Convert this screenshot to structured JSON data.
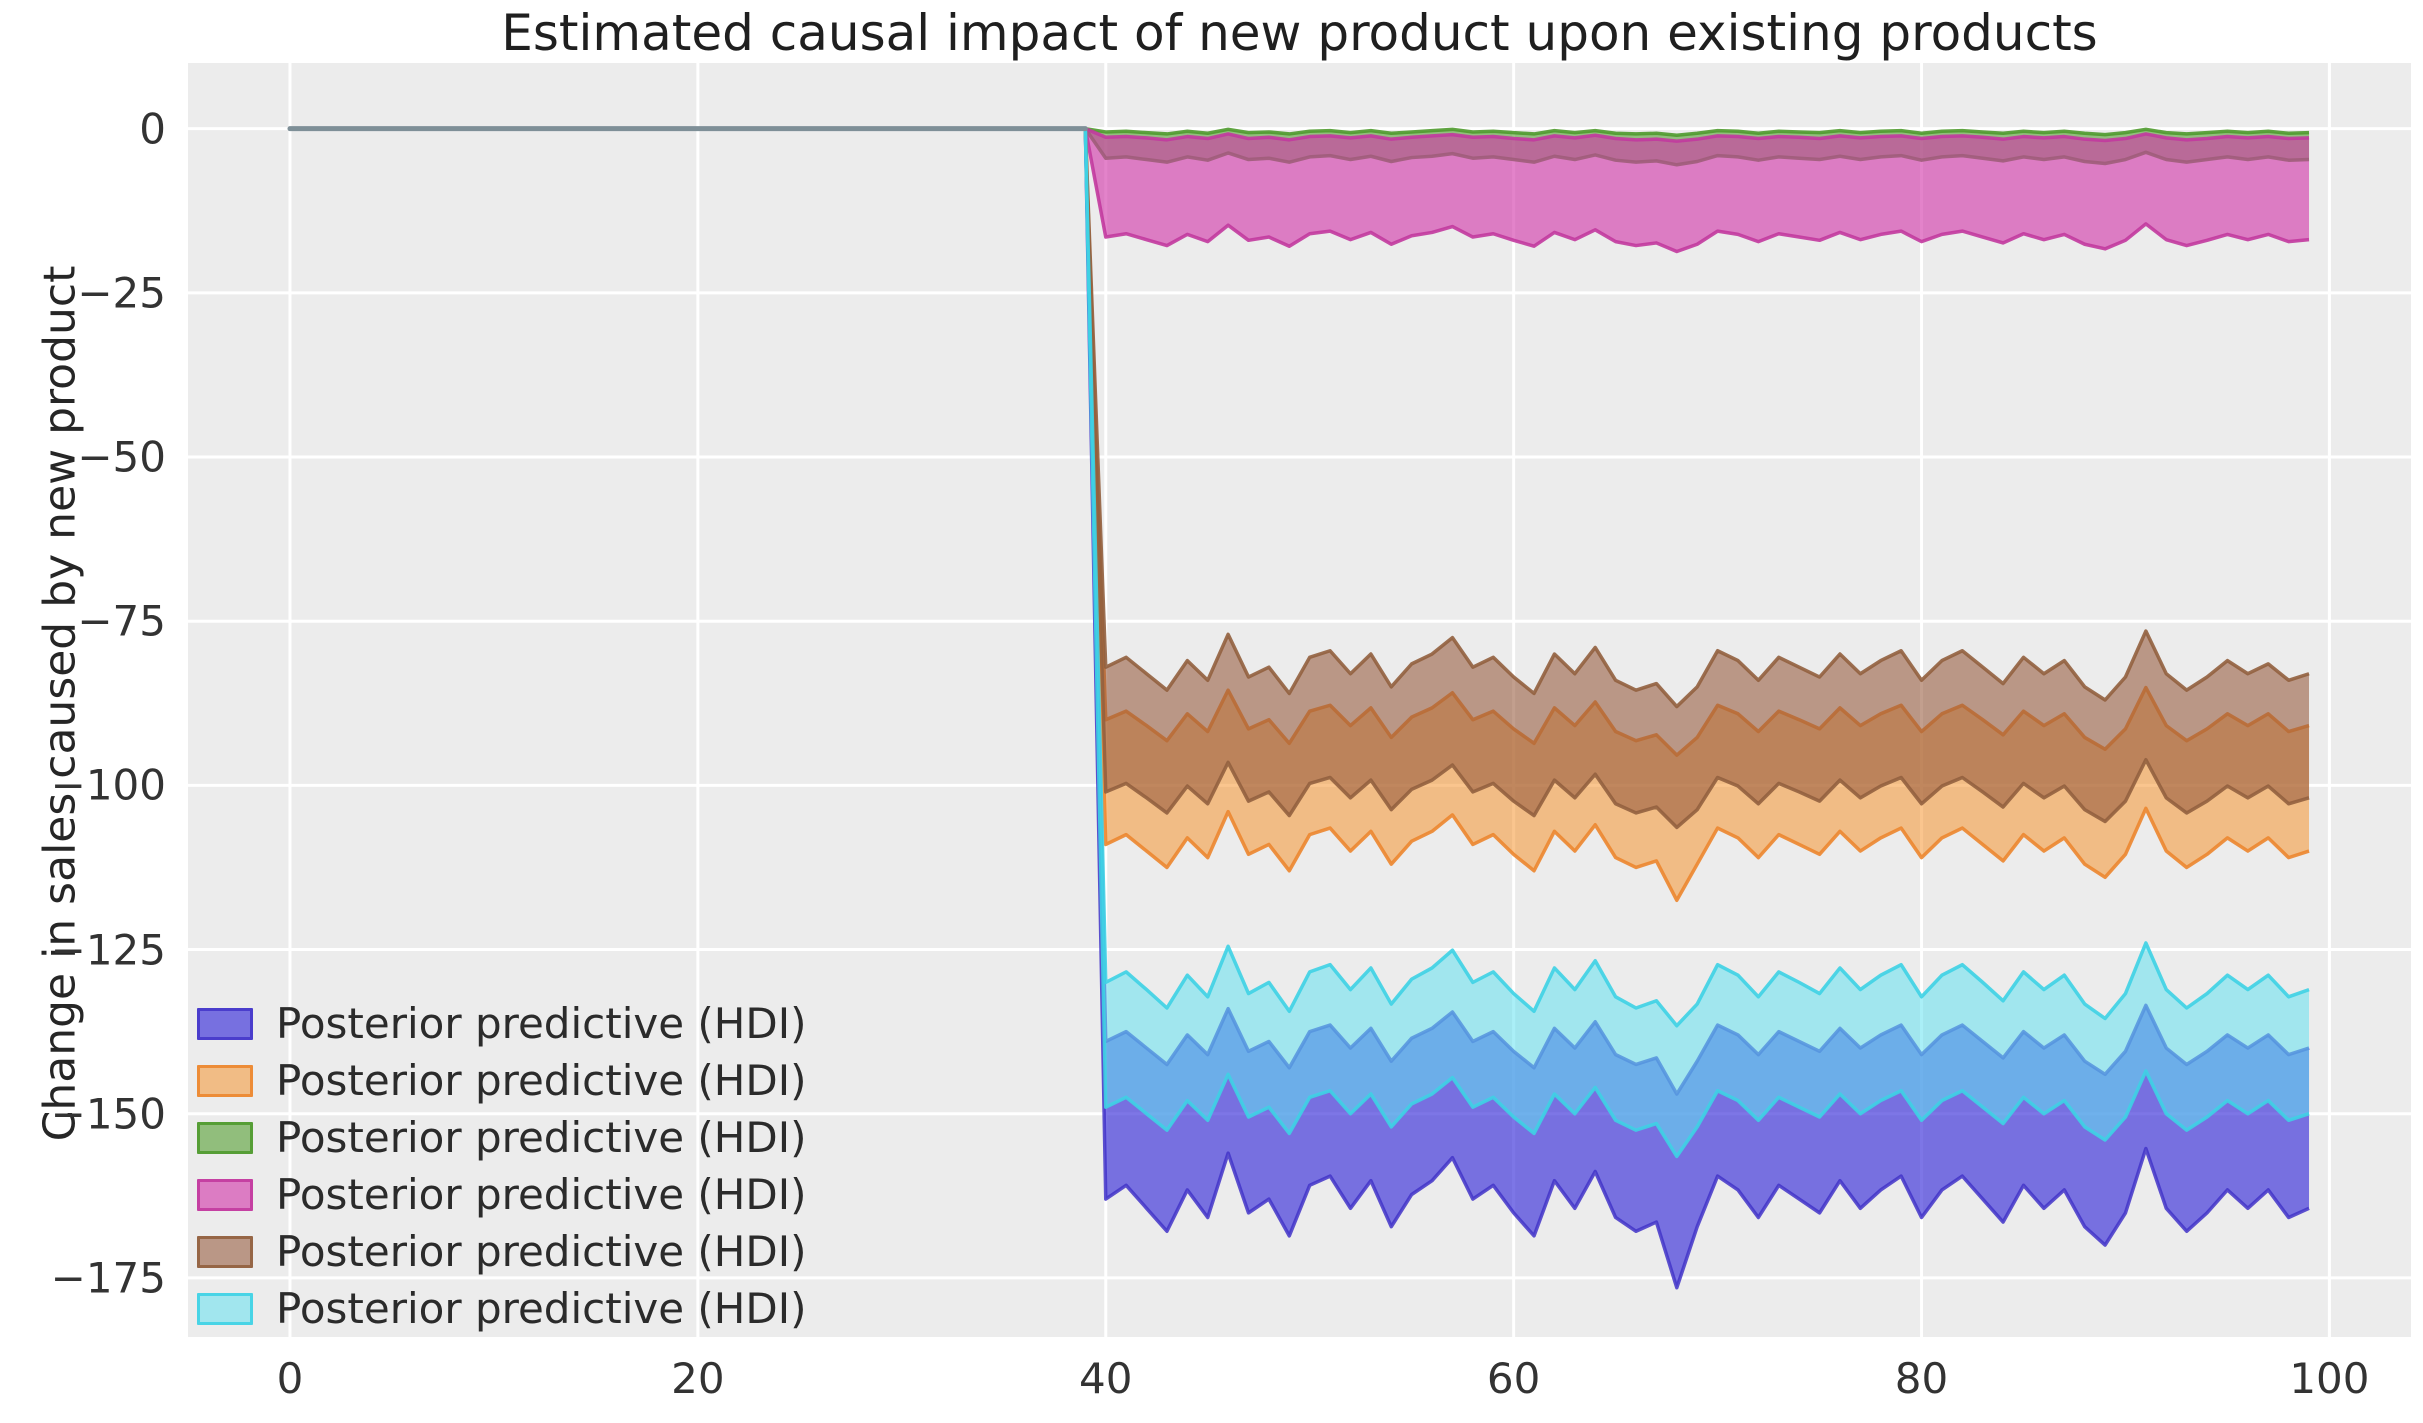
{
  "chart_data": {
    "type": "area",
    "title": "Estimated causal impact of new product upon existing products",
    "xlabel": "",
    "ylabel": "Change in sales caused by new product",
    "xlim": [
      -5,
      104
    ],
    "ylim": [
      -184,
      10
    ],
    "xticks": [
      0,
      20,
      40,
      60,
      80,
      100
    ],
    "xtick_labels": [
      "0",
      "20",
      "40",
      "60",
      "80",
      "100"
    ],
    "yticks": [
      0,
      -25,
      -50,
      -75,
      -100,
      -125,
      -150,
      -175
    ],
    "ytick_labels": [
      "0",
      "−25",
      "−50",
      "−75",
      "−100",
      "−125",
      "−150",
      "−175"
    ],
    "grid": true,
    "plot_bg_color": "#ececec",
    "grid_color": "#ffffff",
    "legend_position": "lower left",
    "pre_period_line": {
      "x_start": 0,
      "x_end": 39,
      "value": 0,
      "color": "#7e8f97"
    },
    "drop_point": {
      "x": 39,
      "y": 0
    },
    "x_post_start": 40,
    "bands": [
      {
        "name": "band-blue",
        "label": "Posterior predictive (HDI)",
        "fill": "rgba(70,60,220,0.70)",
        "edge": "rgba(66,52,200,0.85)",
        "upper": [
          -139,
          -137.5,
          -140,
          -142.5,
          -138,
          -141,
          -134,
          -140.5,
          -139,
          -143,
          -137.5,
          -136.5,
          -140,
          -137,
          -142,
          -138.5,
          -137,
          -134.5,
          -139,
          -137.5,
          -140.5,
          -143,
          -137,
          -140,
          -136,
          -141,
          -142.5,
          -141.5,
          -147,
          -142,
          -136.5,
          -138,
          -141,
          -137.5,
          -139,
          -140.5,
          -137,
          -140,
          -138,
          -136.5,
          -141,
          -138,
          -136.5,
          -139,
          -141.5,
          -137.5,
          -140,
          -138,
          -142,
          -144,
          -140.5,
          -133.5,
          -140,
          -142.5,
          -140.5,
          -138,
          -140,
          -138,
          -141,
          -140
        ],
        "lower": [
          -163,
          -160.9,
          -164.4,
          -167.9,
          -161.6,
          -165.8,
          -156,
          -165.1,
          -163,
          -168.6,
          -160.9,
          -159.5,
          -164.4,
          -160.2,
          -167.2,
          -162.3,
          -160.2,
          -156.7,
          -163,
          -160.9,
          -165.1,
          -168.6,
          -160.2,
          -164.4,
          -158.8,
          -165.8,
          -167.9,
          -166.5,
          -176.5,
          -167.2,
          -159.5,
          -161.6,
          -165.8,
          -160.9,
          -163,
          -165.1,
          -160.2,
          -164.4,
          -161.6,
          -159.5,
          -165.8,
          -161.6,
          -159.5,
          -163,
          -166.5,
          -160.9,
          -164.4,
          -161.6,
          -167.2,
          -170,
          -165.1,
          -155.3,
          -164.4,
          -167.9,
          -165.1,
          -161.6,
          -164.4,
          -161.6,
          -165.8,
          -164.4
        ]
      },
      {
        "name": "band-orange",
        "label": "Posterior predictive (HDI)",
        "fill": "rgba(245,150,50,0.55)",
        "edge": "rgba(236,134,47,0.9)",
        "upper": [
          -90,
          -88.7,
          -90.9,
          -93.2,
          -89.1,
          -91.8,
          -85.5,
          -91.4,
          -90,
          -93.6,
          -88.7,
          -87.8,
          -90.9,
          -88.2,
          -92.7,
          -89.6,
          -88.2,
          -85.9,
          -90,
          -88.7,
          -91.4,
          -93.6,
          -88.2,
          -90.9,
          -87.3,
          -91.8,
          -93.2,
          -92.3,
          -95.4,
          -92.7,
          -87.8,
          -89.1,
          -91.8,
          -88.7,
          -90,
          -91.4,
          -88.2,
          -90.9,
          -89.1,
          -87.8,
          -91.8,
          -89.1,
          -87.8,
          -90,
          -92.3,
          -88.7,
          -90.9,
          -89.1,
          -92.7,
          -94.5,
          -91.4,
          -85.1,
          -90.9,
          -93.2,
          -91.4,
          -89.1,
          -90.9,
          -89.1,
          -91.8,
          -90.9
        ],
        "lower": [
          -109,
          -107.5,
          -110,
          -112.5,
          -108,
          -111,
          -104,
          -110.5,
          -109,
          -113,
          -107.5,
          -106.5,
          -110,
          -107,
          -112,
          -108.5,
          -107,
          -104.5,
          -109,
          -107.5,
          -110.5,
          -113,
          -107,
          -110,
          -106,
          -111,
          -112.5,
          -111.5,
          -117.5,
          -112,
          -106.5,
          -108,
          -111,
          -107.5,
          -109,
          -110.5,
          -107,
          -110,
          -108,
          -106.5,
          -111,
          -108,
          -106.5,
          -109,
          -111.5,
          -107.5,
          -110,
          -108,
          -112,
          -114,
          -110.5,
          -103.5,
          -110,
          -112.5,
          -110.5,
          -108,
          -110,
          -108,
          -111,
          -110
        ]
      },
      {
        "name": "band-green",
        "label": "Posterior predictive (HDI)",
        "fill": "rgba(85,160,50,0.60)",
        "edge": "rgba(79,154,45,0.9)",
        "upper": [
          -0.5,
          -0.4,
          -0.6,
          -0.8,
          -0.4,
          -0.7,
          -0.1,
          -0.6,
          -0.5,
          -0.8,
          -0.4,
          -0.3,
          -0.6,
          -0.3,
          -0.7,
          -0.5,
          -0.3,
          -0.1,
          -0.5,
          -0.4,
          -0.6,
          -0.8,
          -0.3,
          -0.6,
          -0.3,
          -0.7,
          -0.8,
          -0.7,
          -1.0,
          -0.7,
          -0.3,
          -0.4,
          -0.7,
          -0.4,
          -0.5,
          -0.6,
          -0.3,
          -0.6,
          -0.4,
          -0.3,
          -0.7,
          -0.4,
          -0.3,
          -0.5,
          -0.7,
          -0.4,
          -0.6,
          -0.4,
          -0.7,
          -0.9,
          -0.6,
          -0.1,
          -0.6,
          -0.8,
          -0.6,
          -0.4,
          -0.6,
          -0.4,
          -0.7,
          -0.6
        ],
        "lower": [
          -4.5,
          -4.3,
          -4.7,
          -5.1,
          -4.3,
          -4.8,
          -3.7,
          -4.7,
          -4.5,
          -5.1,
          -4.3,
          -4.1,
          -4.7,
          -4.2,
          -5.0,
          -4.4,
          -4.2,
          -3.8,
          -4.5,
          -4.3,
          -4.7,
          -5.1,
          -4.2,
          -4.7,
          -4.0,
          -4.8,
          -5.1,
          -4.9,
          -5.5,
          -5.0,
          -4.1,
          -4.3,
          -4.8,
          -4.3,
          -4.5,
          -4.7,
          -4.2,
          -4.7,
          -4.3,
          -4.1,
          -4.8,
          -4.3,
          -4.1,
          -4.5,
          -4.9,
          -4.3,
          -4.7,
          -4.3,
          -5.0,
          -5.3,
          -4.7,
          -3.6,
          -4.7,
          -5.1,
          -4.7,
          -4.3,
          -4.7,
          -4.3,
          -4.8,
          -4.7
        ]
      },
      {
        "name": "band-pink",
        "label": "Posterior predictive (HDI)",
        "fill": "rgba(210,55,170,0.62)",
        "edge": "rgba(194,58,158,0.9)",
        "upper": [
          -1.3,
          -1.2,
          -1.4,
          -1.7,
          -1.2,
          -1.5,
          -0.8,
          -1.5,
          -1.3,
          -1.7,
          -1.2,
          -1.1,
          -1.4,
          -1.1,
          -1.6,
          -1.3,
          -1.1,
          -0.9,
          -1.3,
          -1.2,
          -1.5,
          -1.7,
          -1.1,
          -1.4,
          -1.0,
          -1.5,
          -1.7,
          -1.6,
          -1.9,
          -1.6,
          -1.1,
          -1.2,
          -1.5,
          -1.2,
          -1.3,
          -1.5,
          -1.1,
          -1.4,
          -1.2,
          -1.1,
          -1.5,
          -1.2,
          -1.1,
          -1.3,
          -1.6,
          -1.2,
          -1.4,
          -1.2,
          -1.6,
          -1.8,
          -1.5,
          -0.8,
          -1.4,
          -1.7,
          -1.5,
          -1.2,
          -1.4,
          -1.2,
          -1.5,
          -1.4
        ],
        "lower": [
          -16.5,
          -16.0,
          -16.9,
          -17.8,
          -16.1,
          -17.2,
          -14.7,
          -17.0,
          -16.5,
          -17.9,
          -16.0,
          -15.6,
          -16.9,
          -15.8,
          -17.6,
          -16.3,
          -15.8,
          -14.9,
          -16.5,
          -16.0,
          -17.0,
          -17.9,
          -15.8,
          -16.9,
          -15.4,
          -17.2,
          -17.8,
          -17.4,
          -18.7,
          -17.6,
          -15.6,
          -16.1,
          -17.2,
          -16.0,
          -16.5,
          -17.0,
          -15.8,
          -16.9,
          -16.1,
          -15.6,
          -17.2,
          -16.1,
          -15.6,
          -16.5,
          -17.4,
          -16.0,
          -16.9,
          -16.1,
          -17.6,
          -18.3,
          -17.0,
          -14.5,
          -16.9,
          -17.8,
          -17.0,
          -16.1,
          -16.9,
          -16.1,
          -17.2,
          -16.9
        ]
      },
      {
        "name": "band-brown",
        "label": "Posterior predictive (HDI)",
        "fill": "rgba(150,90,60,0.58)",
        "edge": "rgba(146,96,63,0.9)",
        "upper": [
          -82,
          -80.5,
          -83,
          -85.5,
          -81,
          -84,
          -77,
          -83.5,
          -82,
          -86,
          -80.5,
          -79.5,
          -83,
          -80,
          -85,
          -81.5,
          -80,
          -77.5,
          -82,
          -80.5,
          -83.5,
          -86,
          -80,
          -83,
          -79,
          -84,
          -85.5,
          -84.5,
          -88,
          -85,
          -79.5,
          -81,
          -84,
          -80.5,
          -82,
          -83.5,
          -80,
          -83,
          -81,
          -79.5,
          -84,
          -81,
          -79.5,
          -82,
          -84.5,
          -80.5,
          -83,
          -81,
          -85,
          -87,
          -83.5,
          -76.5,
          -83,
          -85.5,
          -83.5,
          -81,
          -83,
          -81.5,
          -84,
          -83
        ],
        "lower": [
          -101,
          -99.7,
          -101.9,
          -104.2,
          -100.1,
          -102.8,
          -96.5,
          -102.4,
          -101,
          -104.6,
          -99.7,
          -98.8,
          -101.9,
          -99.2,
          -103.7,
          -100.6,
          -99.2,
          -96.9,
          -101,
          -99.7,
          -102.4,
          -104.6,
          -99.2,
          -101.9,
          -98.3,
          -102.8,
          -104.2,
          -103.3,
          -106.4,
          -103.7,
          -98.8,
          -100.1,
          -102.8,
          -99.7,
          -101,
          -102.4,
          -99.2,
          -101.9,
          -100.1,
          -98.8,
          -102.8,
          -100.1,
          -98.8,
          -101,
          -103.3,
          -99.7,
          -101.9,
          -100.1,
          -103.7,
          -105.5,
          -102.4,
          -96.1,
          -101.9,
          -104.2,
          -102.4,
          -100.1,
          -101.9,
          -100.1,
          -102.8,
          -101.9
        ]
      },
      {
        "name": "band-cyan",
        "label": "Posterior predictive (HDI)",
        "fill": "rgba(100,225,240,0.55)",
        "edge": "rgba(62,210,228,0.9)",
        "upper": [
          -130,
          -128.4,
          -131.1,
          -133.9,
          -128.9,
          -132.2,
          -124.5,
          -131.7,
          -130,
          -134.4,
          -128.4,
          -127.3,
          -131.1,
          -127.8,
          -133.3,
          -129.5,
          -127.8,
          -125.1,
          -130,
          -128.4,
          -131.7,
          -134.4,
          -127.8,
          -131.1,
          -126.7,
          -132.2,
          -133.9,
          -132.8,
          -136.6,
          -133.3,
          -127.3,
          -128.9,
          -132.2,
          -128.4,
          -130,
          -131.7,
          -127.8,
          -131.1,
          -128.9,
          -127.3,
          -132.2,
          -128.9,
          -127.3,
          -130,
          -132.8,
          -128.4,
          -131.1,
          -128.9,
          -133.3,
          -135.5,
          -131.7,
          -124.0,
          -131.1,
          -133.9,
          -131.7,
          -128.9,
          -131.1,
          -128.9,
          -132.2,
          -131.1
        ],
        "lower": [
          -149,
          -147.5,
          -150,
          -152.5,
          -148,
          -151,
          -144,
          -150.5,
          -149,
          -153,
          -147.5,
          -146.5,
          -150,
          -147,
          -152,
          -148.5,
          -147,
          -144.5,
          -149,
          -147.5,
          -150.5,
          -153,
          -147,
          -150,
          -146,
          -151,
          -152.5,
          -151.5,
          -156.5,
          -152,
          -146.5,
          -148,
          -151,
          -147.5,
          -149,
          -150.5,
          -147,
          -150,
          -148,
          -146.5,
          -151,
          -148,
          -146.5,
          -149,
          -151.5,
          -147.5,
          -150,
          -148,
          -152,
          -154,
          -150.5,
          -143.5,
          -150,
          -152.5,
          -150.5,
          -148,
          -150,
          -148,
          -151,
          -150
        ]
      }
    ]
  }
}
